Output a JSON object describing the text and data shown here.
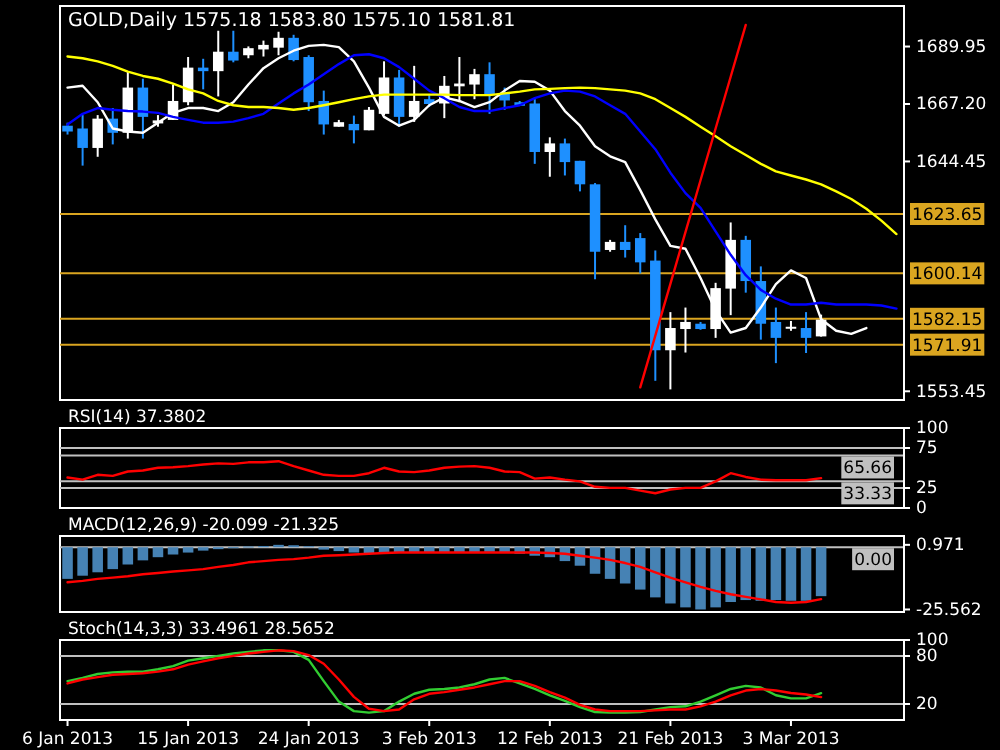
{
  "chart_data": [
    {
      "type": "candlestick",
      "title": "GOLD,Daily  1575.18 1583.80 1575.10 1581.81",
      "ohlc": [
        [
          1658.6,
          1659.8,
          1655.1,
          1656.3
        ],
        [
          1657.5,
          1662.8,
          1642.8,
          1649.8
        ],
        [
          1649.8,
          1662.8,
          1646.3,
          1661.4
        ],
        [
          1661.4,
          1665.6,
          1651.2,
          1655.8
        ],
        [
          1655.8,
          1679.9,
          1653.5,
          1673.7
        ],
        [
          1673.7,
          1677.2,
          1653.5,
          1662.1
        ],
        [
          1659.5,
          1662.8,
          1658.2,
          1660.7
        ],
        [
          1660.9,
          1674.9,
          1660.9,
          1668.4
        ],
        [
          1667.9,
          1685.8,
          1666.7,
          1681.6
        ],
        [
          1681.6,
          1685.1,
          1673.0,
          1680.2
        ],
        [
          1680.2,
          1696.2,
          1670.2,
          1687.9
        ],
        [
          1687.9,
          1696.2,
          1683.7,
          1684.4
        ],
        [
          1686.5,
          1690.0,
          1685.3,
          1689.3
        ],
        [
          1688.8,
          1692.3,
          1686.0,
          1690.6
        ],
        [
          1689.5,
          1695.8,
          1686.5,
          1693.4
        ],
        [
          1693.4,
          1694.6,
          1684.1,
          1684.6
        ],
        [
          1685.8,
          1686.5,
          1664.4,
          1667.9
        ],
        [
          1668.4,
          1672.5,
          1655.1,
          1659.1
        ],
        [
          1658.2,
          1660.9,
          1658.2,
          1660.0
        ],
        [
          1659.3,
          1662.6,
          1651.6,
          1656.8
        ],
        [
          1656.8,
          1666.0,
          1656.8,
          1664.9
        ],
        [
          1663.3,
          1684.1,
          1662.8,
          1677.7
        ],
        [
          1677.7,
          1680.7,
          1658.2,
          1662.1
        ],
        [
          1662.1,
          1682.3,
          1660.1,
          1668.4
        ],
        [
          1669.1,
          1670.7,
          1666.0,
          1667.2
        ],
        [
          1667.4,
          1678.3,
          1661.6,
          1674.4
        ],
        [
          1674.2,
          1685.8,
          1667.9,
          1675.3
        ],
        [
          1674.9,
          1681.1,
          1669.1,
          1679.0
        ],
        [
          1679.0,
          1683.7,
          1663.3,
          1670.9
        ],
        [
          1671.4,
          1673.7,
          1664.9,
          1668.6
        ],
        [
          1667.9,
          1668.4,
          1666.5,
          1666.5
        ],
        [
          1667.4,
          1669.1,
          1643.5,
          1648.2
        ],
        [
          1648.2,
          1654.0,
          1638.4,
          1651.6
        ],
        [
          1651.6,
          1653.5,
          1638.9,
          1644.2
        ],
        [
          1644.7,
          1644.7,
          1632.6,
          1635.4
        ],
        [
          1635.4,
          1635.9,
          1597.8,
          1608.7
        ],
        [
          1609.4,
          1613.4,
          1608.7,
          1612.6
        ],
        [
          1612.6,
          1619.2,
          1606.4,
          1609.4
        ],
        [
          1614.1,
          1616.1,
          1600.1,
          1604.5
        ],
        [
          1605.2,
          1609.2,
          1557.6,
          1569.7
        ],
        [
          1569.7,
          1584.8,
          1554.2,
          1578.5
        ],
        [
          1578.1,
          1586.6,
          1568.8,
          1580.9
        ],
        [
          1580.2,
          1580.9,
          1577.8,
          1578.1
        ],
        [
          1578.1,
          1596.4,
          1574.6,
          1594.3
        ],
        [
          1594.1,
          1620.3,
          1583.6,
          1613.4
        ],
        [
          1613.4,
          1615.0,
          1592.5,
          1597.1
        ],
        [
          1597.1,
          1602.9,
          1573.9,
          1580.2
        ],
        [
          1580.9,
          1586.6,
          1564.6,
          1574.6
        ],
        [
          1578.5,
          1581.3,
          1577.4,
          1579.0
        ],
        [
          1578.5,
          1584.8,
          1568.6,
          1574.6
        ],
        [
          1575.18,
          1583.8,
          1575.1,
          1581.81
        ],
        null,
        null,
        null,
        null,
        null
      ],
      "colors": [
        "#1e90ff",
        "#1e90ff",
        "#ffffff",
        "#1e90ff",
        "#ffffff",
        "#1e90ff",
        "#ffffff",
        "#ffffff",
        "#ffffff",
        "#1e90ff",
        "#ffffff",
        "#1e90ff",
        "#ffffff",
        "#ffffff",
        "#ffffff",
        "#1e90ff",
        "#1e90ff",
        "#1e90ff",
        "#ffffff",
        "#1e90ff",
        "#ffffff",
        "#ffffff",
        "#1e90ff",
        "#ffffff",
        "#1e90ff",
        "#ffffff",
        "#ffffff",
        "#ffffff",
        "#1e90ff",
        "#1e90ff",
        "#1e90ff",
        "#1e90ff",
        "#ffffff",
        "#1e90ff",
        "#1e90ff",
        "#1e90ff",
        "#ffffff",
        "#1e90ff",
        "#1e90ff",
        "#1e90ff",
        "#ffffff",
        "#ffffff",
        "#1e90ff",
        "#ffffff",
        "#ffffff",
        "#1e90ff",
        "#1e90ff",
        "#1e90ff",
        "#ffffff",
        "#1e90ff",
        "#ffffff",
        null,
        null,
        null,
        null,
        null
      ],
      "series": [
        {
          "type": "line",
          "color": "#ffffff",
          "values": [
            1673.7,
            1674.4,
            1667.9,
            1657.5,
            1656.3,
            1655.8,
            1659.8,
            1663.7,
            1665.6,
            1665.6,
            1664.4,
            1667.9,
            1674.9,
            1681.4,
            1685.3,
            1688.3,
            1690.2,
            1690.6,
            1689.7,
            1684.1,
            1673.7,
            1662.1,
            1658.6,
            1660.9,
            1666.7,
            1669.8,
            1668.4,
            1666.0,
            1667.9,
            1672.5,
            1676.3,
            1676.0,
            1672.5,
            1664.4,
            1658.6,
            1650.5,
            1646.5,
            1644.2,
            1633.1,
            1621.5,
            1611.0,
            1609.9,
            1598.3,
            1585.5,
            1576.7,
            1578.5,
            1586.6,
            1595.9,
            1601.3,
            1598.3,
            1582.0,
            1577.4,
            1576.2,
            1578.5,
            null,
            null
          ]
        },
        {
          "type": "line",
          "color": "#0000ff",
          "values": [
            1659.1,
            1663.3,
            1665.6,
            1664.9,
            1664.4,
            1664.2,
            1663.7,
            1662.1,
            1660.9,
            1659.8,
            1659.8,
            1660.2,
            1661.6,
            1663.3,
            1667.4,
            1671.4,
            1674.9,
            1679.0,
            1683.0,
            1686.5,
            1686.9,
            1685.3,
            1681.8,
            1677.2,
            1672.5,
            1669.5,
            1666.0,
            1664.4,
            1664.4,
            1665.6,
            1666.7,
            1669.5,
            1671.4,
            1672.5,
            1672.1,
            1670.2,
            1666.7,
            1663.3,
            1656.3,
            1649.3,
            1640.0,
            1631.9,
            1626.1,
            1616.8,
            1607.5,
            1599.4,
            1593.6,
            1590.1,
            1587.8,
            1587.8,
            1588.5,
            1587.8,
            1587.8,
            1587.8,
            1587.4,
            1586.2
          ]
        },
        {
          "type": "line",
          "color": "#ffff00",
          "values": [
            1686.0,
            1685.3,
            1684.1,
            1682.3,
            1680.0,
            1678.3,
            1677.2,
            1675.3,
            1673.0,
            1671.4,
            1668.4,
            1666.7,
            1666.0,
            1666.0,
            1665.6,
            1664.9,
            1665.6,
            1666.7,
            1667.9,
            1669.1,
            1670.2,
            1670.9,
            1670.9,
            1670.9,
            1670.9,
            1670.9,
            1670.7,
            1670.7,
            1670.7,
            1671.4,
            1672.1,
            1673.0,
            1673.2,
            1673.5,
            1673.7,
            1673.5,
            1673.0,
            1672.5,
            1671.4,
            1669.1,
            1665.6,
            1662.1,
            1658.2,
            1654.4,
            1650.5,
            1647.0,
            1643.5,
            1640.5,
            1638.9,
            1637.3,
            1635.4,
            1632.6,
            1629.6,
            1625.7,
            1621.0,
            1615.7
          ]
        },
        {
          "type": "line",
          "color": "#ff0000",
          "values": [
            null,
            null,
            null,
            null,
            null,
            null,
            null,
            null,
            null,
            null,
            null,
            null,
            null,
            null,
            null,
            null,
            null,
            null,
            null,
            null,
            null,
            null,
            null,
            null,
            null,
            null,
            null,
            null,
            null,
            null,
            null,
            null,
            null,
            null,
            null,
            null,
            null,
            null,
            1555,
            1575.5,
            1596,
            1616.5,
            1637,
            1657.5,
            1678,
            1698.5,
            null,
            null,
            null,
            null,
            null,
            null,
            null,
            null,
            null,
            null
          ]
        }
      ],
      "ylim": [
        1550,
        1706
      ],
      "yticks": [
        {
          "value": 1689.95,
          "label": "1689.95"
        },
        {
          "value": 1667.2,
          "label": "1667.20"
        },
        {
          "value": 1644.45,
          "label": "1644.45"
        },
        {
          "value": 1553.45,
          "label": "1553.45"
        }
      ],
      "ref_lines": [
        {
          "axis": "y",
          "value": 1623.65,
          "label": "1623.65",
          "color": "#daa520"
        },
        {
          "axis": "y",
          "value": 1600.14,
          "label": "1600.14",
          "color": "#daa520"
        },
        {
          "axis": "y",
          "value": 1582.15,
          "label": "1582.15",
          "color": "#daa520"
        },
        {
          "axis": "y",
          "value": 1571.91,
          "label": "1571.91",
          "color": "#daa520"
        }
      ],
      "tick_labels": "y"
    },
    {
      "type": "line",
      "title": "RSI(14) 37.3802",
      "series": [
        {
          "color": "#ff0000",
          "values": [
            38.1,
            35.4,
            41.5,
            40.1,
            45.6,
            46.9,
            50.3,
            51.0,
            52.4,
            54.4,
            55.8,
            55.1,
            57.1,
            57.1,
            58.5,
            52.4,
            46.9,
            41.5,
            40.1,
            40.1,
            43.5,
            50.3,
            45.6,
            44.9,
            46.9,
            50.3,
            51.7,
            52.4,
            50.3,
            45.6,
            44.9,
            36.7,
            38.1,
            35.4,
            33.3,
            26.5,
            25.2,
            25.2,
            21.8,
            18.4,
            23.1,
            25.2,
            25.2,
            33.3,
            43.5,
            38.8,
            35.4,
            34.7,
            34.7,
            34.7,
            37.38,
            null,
            null,
            null,
            null,
            null
          ]
        }
      ],
      "ylim": [
        0,
        100
      ],
      "yticks": [
        0,
        25,
        75,
        100
      ],
      "ref_lines": [
        {
          "axis": "y",
          "value": 75,
          "label": null,
          "color": "#c0c0c0"
        },
        {
          "axis": "y",
          "value": 65.66,
          "label": "65.66",
          "color": "#c0c0c0"
        },
        {
          "axis": "y",
          "value": 33.33,
          "label": "33.33",
          "color": "#c0c0c0"
        },
        {
          "axis": "y",
          "value": 25,
          "label": null,
          "color": "#c0c0c0"
        }
      ],
      "tick_labels": "y"
    },
    {
      "type": "bar",
      "title": "MACD(12,26,9) -20.099 -21.325",
      "series": [
        {
          "type": "bar",
          "color": "#4682b4",
          "values": [
            -13.0,
            -11.7,
            -10.3,
            -9.0,
            -7.1,
            -5.4,
            -4.1,
            -3.0,
            -2.2,
            -1.4,
            -0.8,
            -0.3,
            0.3,
            0.5,
            0.971,
            0.8,
            0.4,
            -1.0,
            -1.6,
            -2.2,
            -2.4,
            -2.2,
            -2.2,
            -2.4,
            -2.2,
            -2.0,
            -2.0,
            -2.0,
            -1.9,
            -2.2,
            -2.7,
            -3.5,
            -4.1,
            -5.7,
            -7.6,
            -10.9,
            -13.0,
            -14.9,
            -17.4,
            -20.6,
            -23.1,
            -24.7,
            -25.562,
            -24.7,
            -22.5,
            -21.7,
            -22.0,
            -21.7,
            -22.0,
            -22.0,
            -20.099,
            null,
            null,
            null,
            null,
            null
          ]
        },
        {
          "type": "line",
          "color": "#ff0000",
          "values": [
            -14.4,
            -13.8,
            -13.0,
            -12.5,
            -11.9,
            -11.1,
            -10.6,
            -10.0,
            -9.5,
            -9.0,
            -8.1,
            -7.3,
            -6.2,
            -5.7,
            -5.2,
            -4.9,
            -4.3,
            -3.5,
            -3.3,
            -3.0,
            -2.7,
            -2.4,
            -2.2,
            -2.2,
            -2.2,
            -2.2,
            -2.2,
            -2.2,
            -2.2,
            -2.2,
            -2.2,
            -2.2,
            -2.4,
            -2.7,
            -3.5,
            -4.3,
            -5.2,
            -6.5,
            -8.1,
            -10.3,
            -12.5,
            -14.4,
            -16.3,
            -17.9,
            -19.3,
            -20.4,
            -21.4,
            -22.5,
            -22.8,
            -22.5,
            -21.325,
            null,
            null,
            null,
            null,
            null
          ]
        }
      ],
      "ylim": [
        -26.6,
        4.6
      ],
      "yticks": [
        {
          "value": 0.971,
          "label": "0.971"
        },
        {
          "value": -25.562,
          "label": "-25.562"
        }
      ],
      "ref_lines": [
        {
          "axis": "y",
          "value": 0,
          "label": "0.00",
          "color": "#c0c0c0"
        }
      ],
      "tick_labels": "y"
    },
    {
      "type": "line",
      "title": "Stoch(14,3,3) 33.4961 28.5652",
      "categories": [
        "6 Jan 2013",
        null,
        null,
        null,
        null,
        null,
        null,
        null,
        "15 Jan 2013",
        null,
        null,
        null,
        null,
        null,
        null,
        null,
        "24 Jan 2013",
        null,
        null,
        null,
        null,
        null,
        null,
        null,
        "3 Feb 2013",
        null,
        null,
        null,
        null,
        null,
        null,
        null,
        "12 Feb 2013",
        null,
        null,
        null,
        null,
        null,
        null,
        null,
        "21 Feb 2013",
        null,
        null,
        null,
        null,
        null,
        null,
        null,
        "3 Mar 2013",
        null,
        null,
        null,
        null,
        null,
        null,
        null
      ],
      "series": [
        {
          "color": "#32cd32",
          "values": [
            48.6,
            52.6,
            57.5,
            59.5,
            60.4,
            60.4,
            63.4,
            67.3,
            74.2,
            77.2,
            80.2,
            83.1,
            85.1,
            87.1,
            87.1,
            85.1,
            75.2,
            48.6,
            23.0,
            11.1,
            9.2,
            11.1,
            23.0,
            32.8,
            37.8,
            38.8,
            40.7,
            44.7,
            50.6,
            52.6,
            45.7,
            38.8,
            30.9,
            24.0,
            16.1,
            10.0,
            9.2,
            9.2,
            10.0,
            13.1,
            16.1,
            17.1,
            23.0,
            30.9,
            38.8,
            42.7,
            40.7,
            30.9,
            27.0,
            27.0,
            33.4961,
            null,
            null,
            null,
            null,
            null
          ]
        },
        {
          "color": "#ff0000",
          "values": [
            45.7,
            50.6,
            53.6,
            56.5,
            57.5,
            58.5,
            60.4,
            63.4,
            69.3,
            73.2,
            77.2,
            80.2,
            83.1,
            85.1,
            87.1,
            86.1,
            81.2,
            70.3,
            50.6,
            28.9,
            14.0,
            11.1,
            13.1,
            25.9,
            32.8,
            34.8,
            37.8,
            40.7,
            44.7,
            48.6,
            48.6,
            42.7,
            34.8,
            27.9,
            19.0,
            13.1,
            11.1,
            11.1,
            11.1,
            12.0,
            13.1,
            13.1,
            17.1,
            23.0,
            30.9,
            36.8,
            38.8,
            36.8,
            33.8,
            31.9,
            28.5652,
            null,
            null,
            null,
            null,
            null
          ]
        }
      ],
      "ylim": [
        0,
        100
      ],
      "yticks": [
        20,
        80,
        100
      ],
      "ref_lines": [
        {
          "axis": "y",
          "value": 80,
          "label": null,
          "color": "#c0c0c0"
        },
        {
          "axis": "y",
          "value": 20,
          "label": null,
          "color": "#c0c0c0"
        }
      ]
    }
  ]
}
